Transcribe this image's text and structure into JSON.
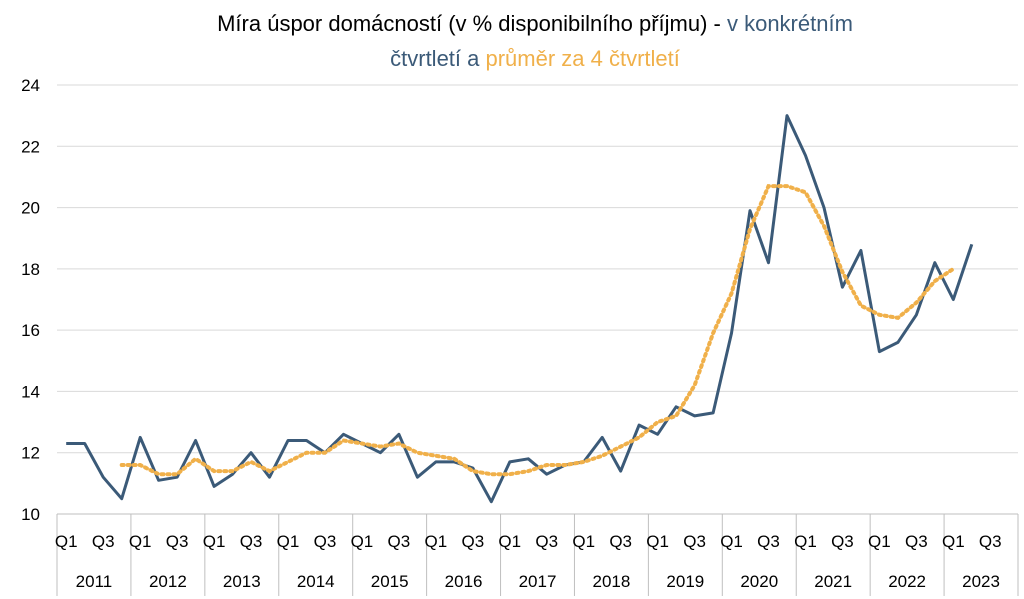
{
  "chart_data": {
    "type": "line",
    "title": {
      "part1": "Míra úspor domácností (v % disponibilního příjmu) - ",
      "part2": "v konkrétním",
      "part3": "čtvrtletí a ",
      "part4": "průměr za 4 čtvrtletí"
    },
    "colors": {
      "quarterly": "#3b5a78",
      "average": "#f0b04a",
      "title": "#000000"
    },
    "ylim": [
      10,
      24
    ],
    "yticks": [
      10,
      12,
      14,
      16,
      18,
      20,
      22,
      24
    ],
    "grid": true,
    "years": [
      "2011",
      "2012",
      "2013",
      "2014",
      "2015",
      "2016",
      "2017",
      "2018",
      "2019",
      "2020",
      "2021",
      "2022",
      "2023"
    ],
    "quarter_labels": [
      "Q1",
      "Q3"
    ],
    "series": [
      {
        "key": "quarterly",
        "values": [
          12.3,
          12.3,
          11.2,
          10.5,
          12.5,
          11.1,
          11.2,
          12.4,
          10.9,
          11.3,
          12.0,
          11.2,
          12.4,
          12.4,
          12.0,
          12.6,
          12.3,
          12.0,
          12.6,
          11.2,
          11.7,
          11.7,
          11.5,
          10.4,
          11.7,
          11.8,
          11.3,
          11.6,
          11.7,
          12.5,
          11.4,
          12.9,
          12.6,
          13.5,
          13.2,
          13.3,
          15.9,
          19.9,
          18.2,
          23.0,
          21.7,
          20.0,
          17.4,
          18.6,
          15.3,
          15.6,
          16.5,
          18.2,
          17.0,
          18.8
        ]
      },
      {
        "key": "average",
        "start_index": 3,
        "values": [
          11.6,
          11.6,
          11.3,
          11.3,
          11.8,
          11.4,
          11.4,
          11.7,
          11.4,
          11.7,
          12.0,
          12.0,
          12.4,
          12.3,
          12.2,
          12.3,
          12.0,
          11.9,
          11.8,
          11.4,
          11.3,
          11.3,
          11.4,
          11.6,
          11.6,
          11.7,
          11.9,
          12.2,
          12.5,
          13.0,
          13.2,
          14.2,
          15.9,
          17.2,
          19.3,
          20.7,
          20.7,
          20.5,
          19.4,
          17.9,
          16.8,
          16.5,
          16.4,
          16.9,
          17.6,
          18.0
        ]
      }
    ]
  }
}
